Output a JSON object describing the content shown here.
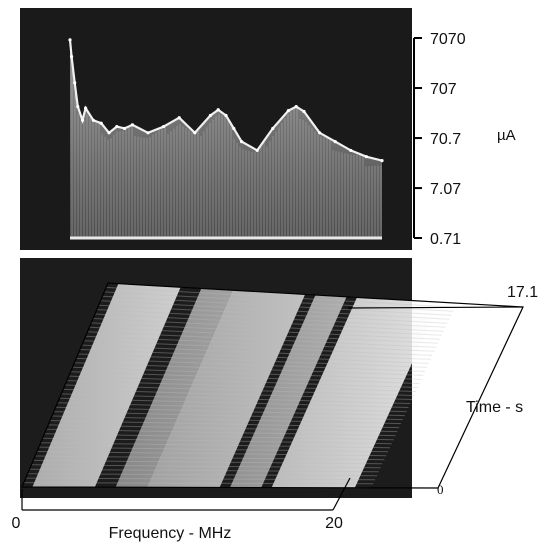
{
  "chart_data": [
    {
      "type": "line",
      "title": "",
      "y_unit": "µA",
      "y_scale": "log",
      "y_ticks": [
        "7070",
        "707",
        "70.7",
        "7.07",
        "0.71"
      ],
      "ylim": [
        0.71,
        7070
      ],
      "x": [
        0.0,
        0.1,
        0.3,
        0.5,
        0.8,
        1.0,
        1.5,
        2.0,
        2.5,
        3.0,
        3.5,
        4.0,
        5.0,
        6.0,
        7.0,
        8.0,
        9.0,
        9.5,
        10.0,
        10.5,
        11.0,
        12.0,
        13.0,
        14.0,
        14.5,
        15.0,
        16.0,
        17.0,
        18.0,
        19.0,
        20.0
      ],
      "series": [
        {
          "values": [
            6500,
            3000,
            900,
            300,
            160,
            280,
            160,
            140,
            90,
            120,
            110,
            130,
            90,
            120,
            180,
            90,
            200,
            260,
            200,
            110,
            60,
            40,
            110,
            250,
            300,
            240,
            90,
            60,
            40,
            30,
            25
          ]
        }
      ],
      "background": "dark",
      "trace_color": "#f0f0f0"
    },
    {
      "type": "waterfall",
      "title": "",
      "xlabel": "Frequency - MHz",
      "x_ticks": [
        "0",
        "20"
      ],
      "xlim": [
        0,
        20
      ],
      "zlabel": "Time - s",
      "z_ticks": [
        "0",
        "17.1"
      ],
      "zlim": [
        0,
        17.1
      ],
      "bands": [
        {
          "from": 0.5,
          "to": 3.5,
          "level": 0.8
        },
        {
          "from": 4.5,
          "to": 6.0,
          "level": 0.45
        },
        {
          "from": 6.0,
          "to": 9.5,
          "level": 0.7
        },
        {
          "from": 10.0,
          "to": 11.5,
          "level": 0.55
        },
        {
          "from": 12.0,
          "to": 16.0,
          "level": 0.95
        }
      ],
      "background": "dark"
    }
  ]
}
